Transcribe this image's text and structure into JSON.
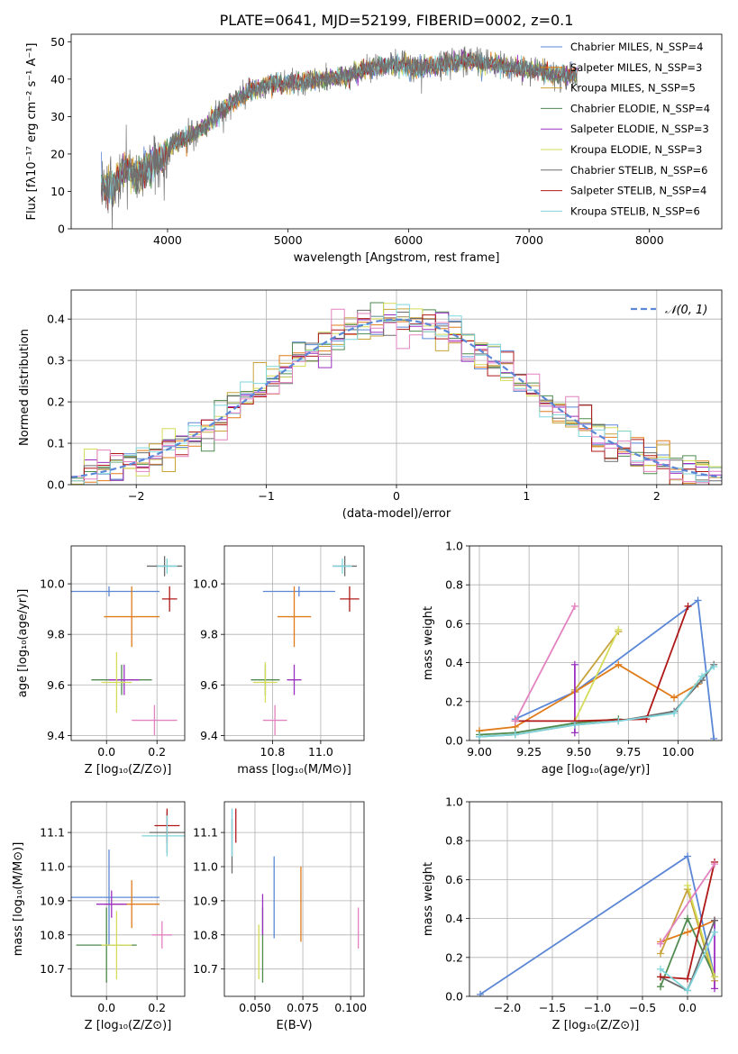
{
  "colors": {
    "C0": "#5b87d6",
    "C1": "#e07b1a",
    "C2": "#c8a33a",
    "C3": "#4f8a4f",
    "C4": "#9b30c0",
    "C5": "#d4dc58",
    "C6": "#6b6b6b",
    "C7": "#b01818",
    "C8": "#7fd5db",
    "C9": "#e382c0"
  },
  "figure_title": "PLATE=0641, MJD=52199, FIBERID=0002, z=0.1",
  "chart_data": [
    {
      "type": "line",
      "id": "spectrum",
      "title": "PLATE=0641, MJD=52199, FIBERID=0002, z=0.1",
      "xlabel": "wavelength [Angstrom, rest frame]",
      "ylabel": "Flux [fλ10⁻¹⁷ erg cm⁻² s⁻¹ A⁻¹]",
      "xlim": [
        3200,
        8600
      ],
      "ylim": [
        0,
        52
      ],
      "xticks": [
        4000,
        5000,
        6000,
        7000,
        8000
      ],
      "yticks": [
        0,
        10,
        20,
        30,
        40,
        50
      ],
      "data_series": {
        "name": "data",
        "color": "gray",
        "x": [
          3450,
          3550,
          3650,
          3750,
          3850,
          3950,
          4050,
          4150,
          4300,
          4500,
          4700,
          4900,
          5100,
          5300,
          5500,
          5700,
          5900,
          6100,
          6300,
          6500,
          6700,
          6900,
          7100,
          7300,
          7400
        ],
        "y": [
          12,
          11,
          16,
          14,
          17,
          18,
          23,
          24,
          27,
          33,
          37,
          39,
          39,
          40,
          41,
          43,
          44,
          43,
          44,
          45,
          44,
          43,
          42,
          41,
          41
        ]
      },
      "legend": [
        {
          "label": "Chabrier MILES, N_SSP=4",
          "color": "C0"
        },
        {
          "label": "Salpeter MILES, N_SSP=3",
          "color": "C1"
        },
        {
          "label": "Kroupa MILES, N_SSP=5",
          "color": "C2"
        },
        {
          "label": "Chabrier ELODIE, N_SSP=4",
          "color": "C3"
        },
        {
          "label": "Salpeter ELODIE, N_SSP=3",
          "color": "C4"
        },
        {
          "label": "Kroupa ELODIE, N_SSP=3",
          "color": "C5"
        },
        {
          "label": "Chabrier STELIB, N_SSP=6",
          "color": "C6"
        },
        {
          "label": "Salpeter STELIB, N_SSP=4",
          "color": "C7"
        },
        {
          "label": "Kroupa STELIB, N_SSP=6",
          "color": "C8"
        }
      ],
      "grid": false
    },
    {
      "type": "histogram",
      "id": "residuals",
      "xlabel": "(data-model)/error",
      "ylabel": "Normed distribution",
      "xlim": [
        -2.5,
        2.5
      ],
      "ylim": [
        0,
        0.47
      ],
      "xticks": [
        -2,
        -1,
        0,
        1,
        2
      ],
      "yticks": [
        0.0,
        0.1,
        0.2,
        0.3,
        0.4
      ],
      "gaussian_label": "𝒩(0, 1)",
      "bin_width": 0.1,
      "grid": true
    },
    {
      "type": "errorbar",
      "id": "age_vs_Z",
      "xlabel": "Z [log₁₀(Z/Z⊙)]",
      "ylabel": "age  [log₁₀(age/yr)]",
      "xlim": [
        -0.14,
        0.31
      ],
      "ylim": [
        9.38,
        10.15
      ],
      "xticks": [
        0.0,
        0.2
      ],
      "yticks": [
        9.4,
        9.6,
        9.8,
        10.0
      ],
      "points": [
        {
          "color": "C0",
          "x": 0.01,
          "y": 9.97,
          "xerr": 0.2,
          "yerr": 0.02
        },
        {
          "color": "C1",
          "x": 0.1,
          "y": 9.87,
          "xerr": 0.11,
          "yerr": 0.12
        },
        {
          "color": "C3",
          "x": 0.06,
          "y": 9.62,
          "xerr": 0.12,
          "yerr": 0.06
        },
        {
          "color": "C4",
          "x": 0.07,
          "y": 9.62,
          "xerr": 0.06,
          "yerr": 0.06
        },
        {
          "color": "C5",
          "x": 0.04,
          "y": 9.61,
          "xerr": 0.06,
          "yerr": 0.12
        },
        {
          "color": "C6",
          "x": 0.23,
          "y": 10.07,
          "xerr": 0.07,
          "yerr": 0.04
        },
        {
          "color": "C7",
          "x": 0.25,
          "y": 9.94,
          "xerr": 0.03,
          "yerr": 0.05
        },
        {
          "color": "C8",
          "x": 0.24,
          "y": 10.07,
          "xerr": 0.04,
          "yerr": 0.03
        },
        {
          "color": "C9",
          "x": 0.19,
          "y": 9.46,
          "xerr": 0.09,
          "yerr": 0.06
        }
      ]
    },
    {
      "type": "errorbar",
      "id": "age_vs_mass",
      "xlabel": "mass [log₁₀(M/M⊙)]",
      "xlim": [
        10.6,
        11.18
      ],
      "ylim": [
        9.38,
        10.15
      ],
      "xticks": [
        10.8,
        11.0
      ],
      "yticks": [
        9.4,
        9.6,
        9.8,
        10.0
      ],
      "points": [
        {
          "color": "C0",
          "x": 10.91,
          "y": 9.97,
          "xerr": 0.15,
          "yerr": 0.02
        },
        {
          "color": "C1",
          "x": 10.89,
          "y": 9.87,
          "xerr": 0.07,
          "yerr": 0.12
        },
        {
          "color": "C3",
          "x": 10.77,
          "y": 9.62,
          "xerr": 0.06,
          "yerr": 0.06
        },
        {
          "color": "C4",
          "x": 10.89,
          "y": 9.62,
          "xerr": 0.03,
          "yerr": 0.06
        },
        {
          "color": "C5",
          "x": 10.77,
          "y": 9.61,
          "xerr": 0.05,
          "yerr": 0.08
        },
        {
          "color": "C6",
          "x": 11.1,
          "y": 10.07,
          "xerr": 0.05,
          "yerr": 0.04
        },
        {
          "color": "C7",
          "x": 11.12,
          "y": 9.94,
          "xerr": 0.04,
          "yerr": 0.05
        },
        {
          "color": "C8",
          "x": 11.09,
          "y": 10.07,
          "xerr": 0.04,
          "yerr": 0.03
        },
        {
          "color": "C9",
          "x": 10.81,
          "y": 9.46,
          "xerr": 0.05,
          "yerr": 0.06
        }
      ]
    },
    {
      "type": "line",
      "id": "massweight_vs_age",
      "xlabel": "age  [log₁₀(age/yr)]",
      "ylabel": "mass weight",
      "xlim": [
        8.95,
        10.22
      ],
      "ylim": [
        0,
        1
      ],
      "xticks": [
        9.0,
        9.25,
        9.5,
        9.75,
        10.0
      ],
      "yticks": [
        0.0,
        0.2,
        0.4,
        0.6,
        0.8,
        1.0
      ],
      "series": [
        {
          "color": "C0",
          "x": [
            9.18,
            9.48,
            10.1,
            10.18
          ],
          "y": [
            0.11,
            0.25,
            0.72,
            0.01
          ]
        },
        {
          "color": "C1",
          "x": [
            9.0,
            9.18,
            9.48,
            9.7,
            9.98,
            10.1
          ],
          "y": [
            0.05,
            0.07,
            0.25,
            0.39,
            0.22,
            0.29
          ]
        },
        {
          "color": "C2",
          "x": [
            9.48,
            9.7
          ],
          "y": [
            0.26,
            0.56
          ]
        },
        {
          "color": "C3",
          "x": [
            9.0,
            9.18,
            9.48,
            9.7
          ],
          "y": [
            0.03,
            0.04,
            0.09,
            0.11
          ]
        },
        {
          "color": "C4",
          "x": [
            9.48,
            9.48
          ],
          "y": [
            0.04,
            0.39
          ]
        },
        {
          "color": "C5",
          "x": [
            9.48,
            9.7
          ],
          "y": [
            0.1,
            0.57
          ]
        },
        {
          "color": "C6",
          "x": [
            9.0,
            9.18,
            9.48,
            9.7,
            9.98,
            10.12,
            10.18
          ],
          "y": [
            0.02,
            0.03,
            0.08,
            0.1,
            0.15,
            0.31,
            0.39
          ]
        },
        {
          "color": "C7",
          "x": [
            9.18,
            9.48,
            9.84,
            10.05
          ],
          "y": [
            0.1,
            0.1,
            0.11,
            0.69
          ]
        },
        {
          "color": "C8",
          "x": [
            9.0,
            9.18,
            9.48,
            9.7,
            9.98,
            10.12,
            10.18
          ],
          "y": [
            0.02,
            0.03,
            0.08,
            0.1,
            0.14,
            0.33,
            0.38
          ]
        },
        {
          "color": "C9",
          "x": [
            9.18,
            9.48
          ],
          "y": [
            0.1,
            0.69
          ]
        }
      ]
    },
    {
      "type": "errorbar",
      "id": "mass_vs_Z",
      "xlabel": "Z [log₁₀(Z/Z⊙)]",
      "ylabel": "mass [log₁₀(M/M⊙)]",
      "xlim": [
        -0.14,
        0.31
      ],
      "ylim": [
        10.62,
        11.19
      ],
      "xticks": [
        0.0,
        0.2
      ],
      "yticks": [
        10.7,
        10.8,
        10.9,
        11.0,
        11.1
      ],
      "points": [
        {
          "color": "C0",
          "x": 0.01,
          "y": 10.91,
          "xerr": 0.2,
          "yerr": 0.14
        },
        {
          "color": "C1",
          "x": 0.1,
          "y": 10.89,
          "xerr": 0.11,
          "yerr": 0.07
        },
        {
          "color": "C3",
          "x": 0.0,
          "y": 10.77,
          "xerr": 0.12,
          "yerr": 0.11
        },
        {
          "color": "C4",
          "x": 0.02,
          "y": 10.89,
          "xerr": 0.06,
          "yerr": 0.04
        },
        {
          "color": "C5",
          "x": 0.04,
          "y": 10.77,
          "xerr": 0.06,
          "yerr": 0.1
        },
        {
          "color": "C6",
          "x": 0.24,
          "y": 11.1,
          "xerr": 0.07,
          "yerr": 0.06
        },
        {
          "color": "C7",
          "x": 0.24,
          "y": 11.12,
          "xerr": 0.05,
          "yerr": 0.05
        },
        {
          "color": "C8",
          "x": 0.24,
          "y": 11.09,
          "xerr": 0.1,
          "yerr": 0.06
        },
        {
          "color": "C9",
          "x": 0.22,
          "y": 10.8,
          "xerr": 0.04,
          "yerr": 0.04
        }
      ]
    },
    {
      "type": "errorbar",
      "id": "mass_vs_ebv",
      "xlabel": "E(B-V)",
      "xlim": [
        0.034,
        0.107
      ],
      "ylim": [
        10.62,
        11.19
      ],
      "xticks": [
        0.05,
        0.075,
        0.1
      ],
      "xticklabels": [
        "0.050",
        "0.075",
        "0.100"
      ],
      "yticks": [
        10.7,
        10.8,
        10.9,
        11.0,
        11.1
      ],
      "points": [
        {
          "color": "C0",
          "x": 0.06,
          "y": 10.91,
          "xerr": 0,
          "yerr": 0.12
        },
        {
          "color": "C1",
          "x": 0.074,
          "y": 10.89,
          "xerr": 0,
          "yerr": 0.11
        },
        {
          "color": "C3",
          "x": 0.054,
          "y": 10.77,
          "xerr": 0,
          "yerr": 0.11
        },
        {
          "color": "C4",
          "x": 0.054,
          "y": 10.86,
          "xerr": 0,
          "yerr": 0.06
        },
        {
          "color": "C5",
          "x": 0.052,
          "y": 10.75,
          "xerr": 0,
          "yerr": 0.08
        },
        {
          "color": "C6",
          "x": 0.038,
          "y": 11.06,
          "xerr": 0,
          "yerr": 0.08
        },
        {
          "color": "C7",
          "x": 0.04,
          "y": 11.12,
          "xerr": 0,
          "yerr": 0.05
        },
        {
          "color": "C8",
          "x": 0.038,
          "y": 11.1,
          "xerr": 0,
          "yerr": 0.07
        },
        {
          "color": "C9",
          "x": 0.104,
          "y": 10.82,
          "xerr": 0,
          "yerr": 0.06
        }
      ]
    },
    {
      "type": "line",
      "id": "massweight_vs_Z",
      "xlabel": "Z [log₁₀(Z/Z⊙)]",
      "ylabel": "mass weight",
      "xlim": [
        -2.42,
        0.38
      ],
      "ylim": [
        0,
        1
      ],
      "xticks": [
        -2.0,
        -1.5,
        -1.0,
        -0.5,
        0.0
      ],
      "yticks": [
        0.0,
        0.2,
        0.4,
        0.6,
        0.8,
        1.0
      ],
      "series": [
        {
          "color": "C0",
          "x": [
            -2.3,
            0.0,
            0.3
          ],
          "y": [
            0.01,
            0.72,
            0.1
          ]
        },
        {
          "color": "C1",
          "x": [
            -0.3,
            0.0,
            0.3
          ],
          "y": [
            0.28,
            0.33,
            0.39
          ]
        },
        {
          "color": "C2",
          "x": [
            -0.3,
            0.0,
            0.3
          ],
          "y": [
            0.22,
            0.55,
            0.08
          ]
        },
        {
          "color": "C3",
          "x": [
            -0.3,
            0.0,
            0.3
          ],
          "y": [
            0.05,
            0.4,
            0.1
          ]
        },
        {
          "color": "C4",
          "x": [
            0.3,
            0.3
          ],
          "y": [
            0.04,
            0.39
          ]
        },
        {
          "color": "C5",
          "x": [
            0.0,
            0.3
          ],
          "y": [
            0.57,
            0.1
          ]
        },
        {
          "color": "C6",
          "x": [
            -0.3,
            0.0,
            0.3
          ],
          "y": [
            0.1,
            0.03,
            0.39
          ]
        },
        {
          "color": "C7",
          "x": [
            -0.3,
            0.0,
            0.3
          ],
          "y": [
            0.1,
            0.09,
            0.69
          ]
        },
        {
          "color": "C8",
          "x": [
            -0.3,
            0.0,
            0.3
          ],
          "y": [
            0.14,
            0.03,
            0.33
          ]
        },
        {
          "color": "C9",
          "x": [
            -0.3,
            0.3
          ],
          "y": [
            0.27,
            0.68
          ]
        }
      ]
    }
  ]
}
